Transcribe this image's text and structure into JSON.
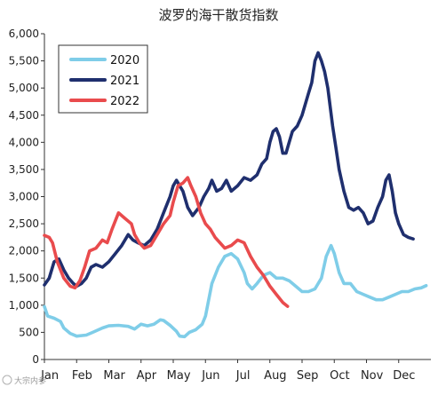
{
  "chart_data": {
    "type": "line",
    "title": "波罗的海干散货指数",
    "xlabel": "",
    "ylabel": "",
    "x_tick_labels": [
      "Jan",
      "Feb",
      "Mar",
      "Apr",
      "May",
      "Jun",
      "Jul",
      "Aug",
      "Sep",
      "Oct",
      "Nov",
      "Dec"
    ],
    "ylim": [
      0,
      6000
    ],
    "y_tick_step": 500,
    "y_tick_format": "thousands",
    "grid": false,
    "legend_position": "top-left",
    "series": [
      {
        "name": "2020",
        "color": "#7fcde8",
        "points": [
          [
            0.0,
            976
          ],
          [
            0.1,
            800
          ],
          [
            0.3,
            760
          ],
          [
            0.5,
            700
          ],
          [
            0.6,
            580
          ],
          [
            0.8,
            480
          ],
          [
            1.0,
            430
          ],
          [
            1.3,
            450
          ],
          [
            1.5,
            500
          ],
          [
            1.8,
            580
          ],
          [
            2.0,
            620
          ],
          [
            2.3,
            630
          ],
          [
            2.6,
            610
          ],
          [
            2.8,
            560
          ],
          [
            3.0,
            650
          ],
          [
            3.2,
            620
          ],
          [
            3.4,
            650
          ],
          [
            3.6,
            730
          ],
          [
            3.7,
            720
          ],
          [
            3.9,
            630
          ],
          [
            4.1,
            520
          ],
          [
            4.2,
            430
          ],
          [
            4.35,
            420
          ],
          [
            4.5,
            500
          ],
          [
            4.7,
            550
          ],
          [
            4.9,
            650
          ],
          [
            5.0,
            800
          ],
          [
            5.2,
            1400
          ],
          [
            5.4,
            1700
          ],
          [
            5.6,
            1900
          ],
          [
            5.8,
            1950
          ],
          [
            6.0,
            1850
          ],
          [
            6.2,
            1600
          ],
          [
            6.3,
            1400
          ],
          [
            6.45,
            1300
          ],
          [
            6.6,
            1400
          ],
          [
            6.8,
            1550
          ],
          [
            7.0,
            1600
          ],
          [
            7.2,
            1500
          ],
          [
            7.4,
            1500
          ],
          [
            7.6,
            1450
          ],
          [
            7.8,
            1350
          ],
          [
            8.0,
            1250
          ],
          [
            8.2,
            1250
          ],
          [
            8.4,
            1300
          ],
          [
            8.6,
            1500
          ],
          [
            8.75,
            1900
          ],
          [
            8.9,
            2100
          ],
          [
            9.0,
            1950
          ],
          [
            9.15,
            1600
          ],
          [
            9.3,
            1400
          ],
          [
            9.5,
            1400
          ],
          [
            9.7,
            1250
          ],
          [
            9.9,
            1200
          ],
          [
            10.1,
            1150
          ],
          [
            10.3,
            1100
          ],
          [
            10.5,
            1100
          ],
          [
            10.7,
            1150
          ],
          [
            10.9,
            1200
          ],
          [
            11.1,
            1250
          ],
          [
            11.3,
            1250
          ],
          [
            11.5,
            1300
          ],
          [
            11.7,
            1320
          ],
          [
            11.85,
            1360
          ]
        ]
      },
      {
        "name": "2021",
        "color": "#1f2f6e",
        "points": [
          [
            0.0,
            1374
          ],
          [
            0.15,
            1500
          ],
          [
            0.3,
            1800
          ],
          [
            0.45,
            1850
          ],
          [
            0.6,
            1650
          ],
          [
            0.75,
            1500
          ],
          [
            0.9,
            1400
          ],
          [
            1.0,
            1350
          ],
          [
            1.15,
            1400
          ],
          [
            1.3,
            1500
          ],
          [
            1.45,
            1700
          ],
          [
            1.6,
            1750
          ],
          [
            1.8,
            1700
          ],
          [
            2.0,
            1800
          ],
          [
            2.2,
            1950
          ],
          [
            2.4,
            2100
          ],
          [
            2.6,
            2300
          ],
          [
            2.75,
            2200
          ],
          [
            2.9,
            2150
          ],
          [
            3.1,
            2100
          ],
          [
            3.3,
            2200
          ],
          [
            3.5,
            2400
          ],
          [
            3.7,
            2700
          ],
          [
            3.9,
            3000
          ],
          [
            4.0,
            3200
          ],
          [
            4.1,
            3300
          ],
          [
            4.2,
            3200
          ],
          [
            4.3,
            3100
          ],
          [
            4.45,
            2800
          ],
          [
            4.6,
            2650
          ],
          [
            4.8,
            2800
          ],
          [
            4.95,
            3000
          ],
          [
            5.1,
            3150
          ],
          [
            5.2,
            3300
          ],
          [
            5.35,
            3100
          ],
          [
            5.5,
            3150
          ],
          [
            5.65,
            3300
          ],
          [
            5.8,
            3100
          ],
          [
            6.0,
            3200
          ],
          [
            6.2,
            3350
          ],
          [
            6.4,
            3300
          ],
          [
            6.6,
            3400
          ],
          [
            6.75,
            3600
          ],
          [
            6.9,
            3700
          ],
          [
            7.0,
            4000
          ],
          [
            7.1,
            4200
          ],
          [
            7.2,
            4250
          ],
          [
            7.3,
            4100
          ],
          [
            7.4,
            3800
          ],
          [
            7.5,
            3800
          ],
          [
            7.6,
            4000
          ],
          [
            7.7,
            4200
          ],
          [
            7.85,
            4300
          ],
          [
            8.0,
            4500
          ],
          [
            8.1,
            4700
          ],
          [
            8.2,
            4900
          ],
          [
            8.3,
            5100
          ],
          [
            8.4,
            5500
          ],
          [
            8.5,
            5650
          ],
          [
            8.6,
            5500
          ],
          [
            8.7,
            5300
          ],
          [
            8.8,
            5000
          ],
          [
            8.95,
            4300
          ],
          [
            9.05,
            3900
          ],
          [
            9.15,
            3500
          ],
          [
            9.3,
            3100
          ],
          [
            9.45,
            2800
          ],
          [
            9.6,
            2750
          ],
          [
            9.75,
            2800
          ],
          [
            9.9,
            2700
          ],
          [
            10.05,
            2500
          ],
          [
            10.2,
            2550
          ],
          [
            10.35,
            2800
          ],
          [
            10.5,
            3000
          ],
          [
            10.6,
            3300
          ],
          [
            10.7,
            3400
          ],
          [
            10.8,
            3100
          ],
          [
            10.9,
            2700
          ],
          [
            11.0,
            2500
          ],
          [
            11.15,
            2300
          ],
          [
            11.3,
            2250
          ],
          [
            11.45,
            2220
          ]
        ]
      },
      {
        "name": "2022",
        "color": "#e94b4d",
        "points": [
          [
            0.0,
            2285
          ],
          [
            0.15,
            2250
          ],
          [
            0.25,
            2150
          ],
          [
            0.4,
            1800
          ],
          [
            0.6,
            1500
          ],
          [
            0.8,
            1350
          ],
          [
            0.95,
            1320
          ],
          [
            1.1,
            1450
          ],
          [
            1.25,
            1700
          ],
          [
            1.4,
            2000
          ],
          [
            1.6,
            2050
          ],
          [
            1.8,
            2200
          ],
          [
            1.95,
            2150
          ],
          [
            2.1,
            2400
          ],
          [
            2.3,
            2700
          ],
          [
            2.5,
            2600
          ],
          [
            2.7,
            2500
          ],
          [
            2.8,
            2300
          ],
          [
            2.95,
            2150
          ],
          [
            3.1,
            2050
          ],
          [
            3.3,
            2100
          ],
          [
            3.5,
            2300
          ],
          [
            3.7,
            2500
          ],
          [
            3.9,
            2650
          ],
          [
            4.0,
            2900
          ],
          [
            4.15,
            3200
          ],
          [
            4.3,
            3250
          ],
          [
            4.45,
            3350
          ],
          [
            4.55,
            3200
          ],
          [
            4.7,
            3000
          ],
          [
            4.85,
            2700
          ],
          [
            5.0,
            2500
          ],
          [
            5.15,
            2400
          ],
          [
            5.3,
            2250
          ],
          [
            5.45,
            2150
          ],
          [
            5.6,
            2050
          ],
          [
            5.8,
            2100
          ],
          [
            6.0,
            2200
          ],
          [
            6.2,
            2150
          ],
          [
            6.4,
            1900
          ],
          [
            6.6,
            1700
          ],
          [
            6.8,
            1550
          ],
          [
            7.0,
            1350
          ],
          [
            7.2,
            1200
          ],
          [
            7.4,
            1050
          ],
          [
            7.55,
            980
          ]
        ]
      }
    ]
  },
  "watermark": "大宗内参"
}
